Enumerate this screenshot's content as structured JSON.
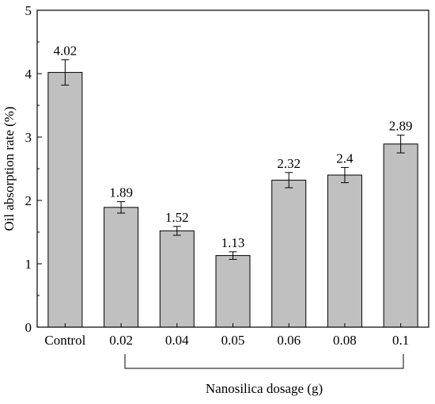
{
  "chart_data": {
    "type": "bar",
    "categories": [
      "Control",
      "0.02",
      "0.04",
      "0.05",
      "0.06",
      "0.08",
      "0.1"
    ],
    "values": [
      4.02,
      1.89,
      1.52,
      1.13,
      2.32,
      2.4,
      2.89
    ],
    "value_labels": [
      "4.02",
      "1.89",
      "1.52",
      "1.13",
      "2.32",
      "2.4",
      "2.89"
    ],
    "errors": [
      0.2,
      0.09,
      0.07,
      0.06,
      0.12,
      0.12,
      0.14
    ],
    "ylabel": "Oil absorption rate (%)",
    "xlabel": "Nanosilica dosage (g)",
    "ylim": [
      0,
      5
    ],
    "yticks": [
      "0",
      "1",
      "2",
      "3",
      "4",
      "5"
    ],
    "grid": false,
    "legend": "none",
    "bar_color": "#c0c0c0",
    "edge_color": "#000000",
    "bracket_span": "0.02 to 0.1"
  }
}
